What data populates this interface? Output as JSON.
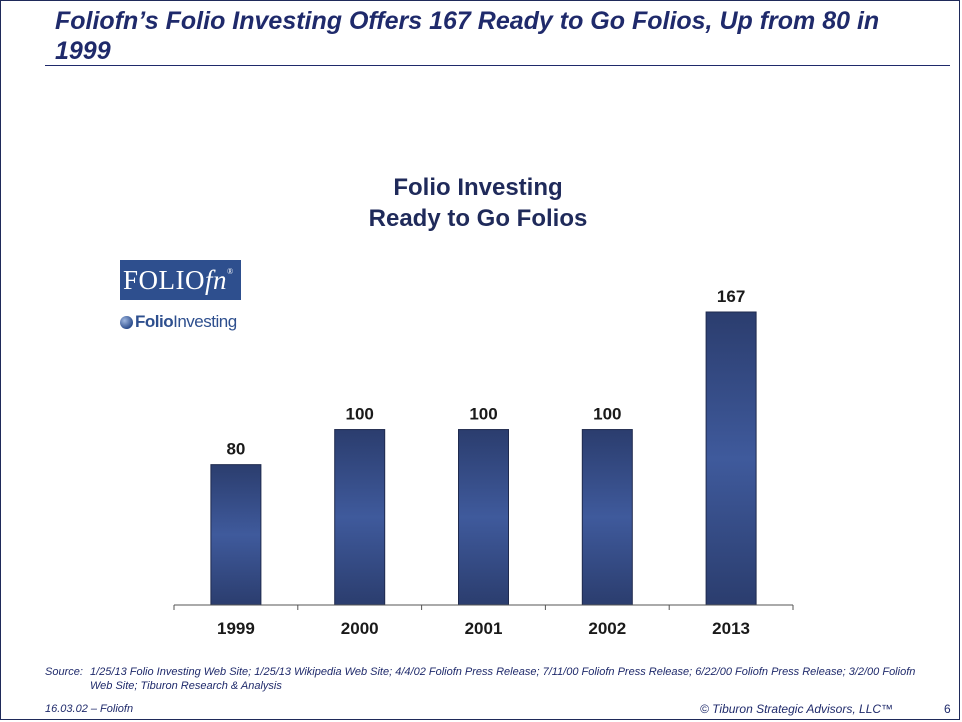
{
  "slide": {
    "title": "Foliofn’s Folio Investing Offers 167 Ready to Go Folios, Up from 80 in 1999",
    "source_label": "Source:",
    "source_text": "1/25/13 Folio Investing Web Site; 1/25/13 Wikipedia Web Site; 4/4/02 Foliofn Press Release; 7/11/00 Foliofn Press Release; 6/22/00 Foliofn Press Release; 3/2/00 Foliofn Web Site; Tiburon Research & Analysis",
    "footer_left": "16.03.02 – Foliofn",
    "footer_right": "© Tiburon Strategic Advisors, LLC™",
    "page_number": "6"
  },
  "logos": {
    "foliofn_main": "FOLIO",
    "foliofn_italic": "fn",
    "foliofn_reg": "®",
    "folio_investing_bold": "Folio",
    "folio_investing_rest": "Investing"
  },
  "chart_data": {
    "type": "bar",
    "title_lines": [
      "Folio Investing",
      "Ready to Go Folios"
    ],
    "categories": [
      "1999",
      "2000",
      "2001",
      "2002",
      "2013"
    ],
    "values": [
      80,
      100,
      100,
      100,
      167
    ],
    "data_labels": [
      "80",
      "100",
      "100",
      "100",
      "167"
    ],
    "ylim": [
      0,
      167
    ],
    "grid": false,
    "legend": "none",
    "bar_color": "#33487e"
  }
}
